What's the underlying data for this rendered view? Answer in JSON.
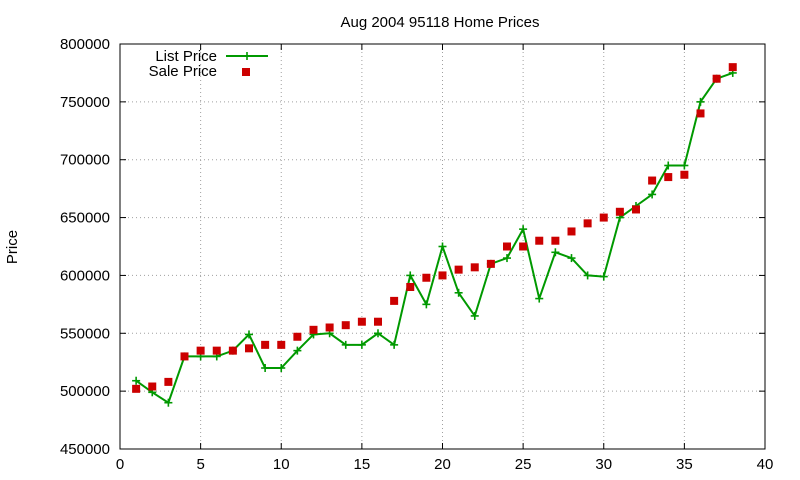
{
  "chart_data": {
    "type": "line",
    "title": "Aug 2004 95118 Home Prices",
    "xlabel": "",
    "ylabel": "Price",
    "xlim": [
      0,
      40
    ],
    "ylim": [
      450000,
      800000
    ],
    "xticks": [
      0,
      5,
      10,
      15,
      20,
      25,
      30,
      35,
      40
    ],
    "yticks": [
      450000,
      500000,
      550000,
      600000,
      650000,
      700000,
      750000,
      800000
    ],
    "grid": true,
    "legend_position": "top-left",
    "series": [
      {
        "name": "List Price",
        "style": "lines-points",
        "marker": "plus",
        "color": "#009900",
        "x": [
          1,
          2,
          3,
          4,
          5,
          6,
          7,
          8,
          9,
          10,
          11,
          12,
          13,
          14,
          15,
          16,
          17,
          18,
          19,
          20,
          21,
          22,
          23,
          24,
          25,
          26,
          27,
          28,
          29,
          30,
          31,
          32,
          33,
          34,
          35,
          36,
          37,
          38
        ],
        "y": [
          509000,
          499000,
          490000,
          530000,
          530000,
          530000,
          535000,
          549000,
          520000,
          520000,
          535000,
          549000,
          550000,
          540000,
          540000,
          550000,
          540000,
          600000,
          575000,
          625000,
          585000,
          565000,
          610000,
          615000,
          640000,
          580000,
          620000,
          615000,
          600000,
          599000,
          650000,
          660000,
          670000,
          695000,
          695000,
          750000,
          770000,
          775000
        ]
      },
      {
        "name": "Sale Price",
        "style": "points",
        "marker": "square",
        "color": "#cc0000",
        "x": [
          1,
          2,
          3,
          4,
          5,
          6,
          7,
          8,
          9,
          10,
          11,
          12,
          13,
          14,
          15,
          16,
          17,
          18,
          19,
          20,
          21,
          22,
          23,
          24,
          25,
          26,
          27,
          28,
          29,
          30,
          31,
          32,
          33,
          34,
          35,
          36,
          37,
          38
        ],
        "y": [
          502000,
          504000,
          508000,
          530000,
          535000,
          535000,
          535000,
          537000,
          540000,
          540000,
          547000,
          553000,
          555000,
          557000,
          560000,
          560000,
          578000,
          590000,
          598000,
          600000,
          605000,
          607000,
          610000,
          625000,
          625000,
          630000,
          630000,
          638000,
          645000,
          650000,
          655000,
          657000,
          682000,
          685000,
          687000,
          740000,
          770000,
          780000
        ]
      }
    ]
  }
}
